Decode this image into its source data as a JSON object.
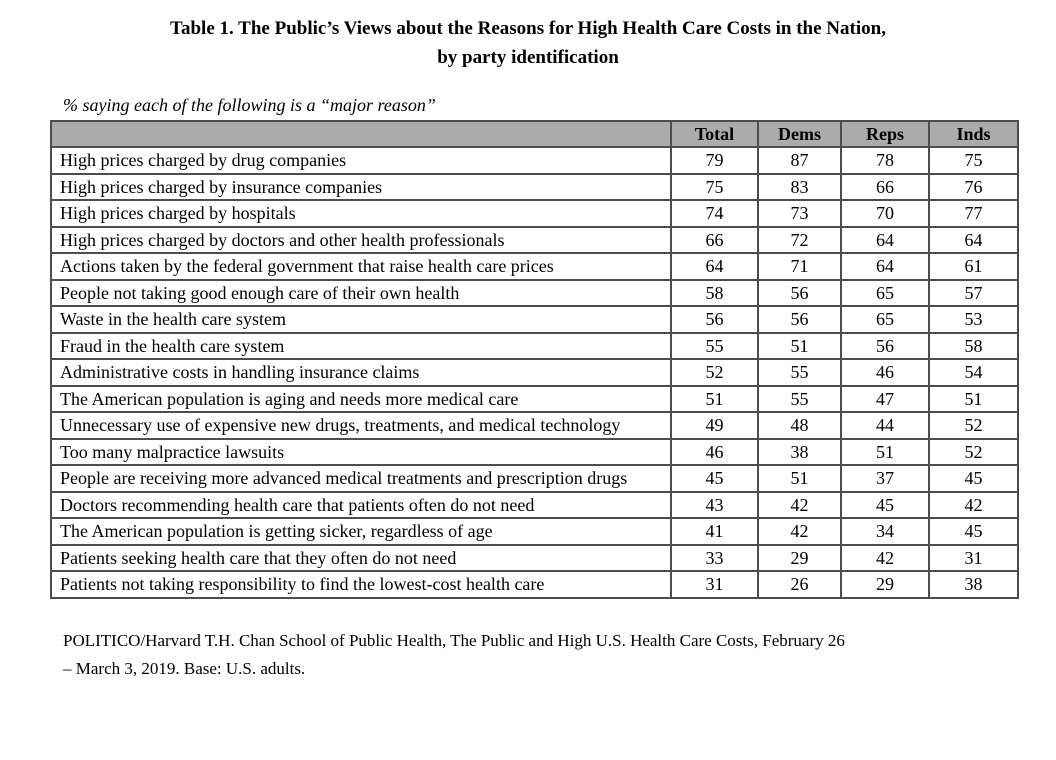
{
  "title": {
    "line1": "Table 1. The Public’s Views about the Reasons for High Health Care Costs in the Nation,",
    "line2": "by party identification"
  },
  "subtitle": "% saying each of the following is a “major reason”",
  "table": {
    "columns": [
      "Total",
      "Dems",
      "Reps",
      "Inds"
    ],
    "rows": [
      {
        "label": "High prices charged by drug companies",
        "values": [
          79,
          87,
          78,
          75
        ]
      },
      {
        "label": "High prices charged by insurance companies",
        "values": [
          75,
          83,
          66,
          76
        ]
      },
      {
        "label": "High prices charged by hospitals",
        "values": [
          74,
          73,
          70,
          77
        ]
      },
      {
        "label": "High prices charged by doctors and other health professionals",
        "values": [
          66,
          72,
          64,
          64
        ]
      },
      {
        "label": "Actions taken by the federal government that raise health care prices",
        "values": [
          64,
          71,
          64,
          61
        ]
      },
      {
        "label": "People not taking good enough care of their own health",
        "values": [
          58,
          56,
          65,
          57
        ]
      },
      {
        "label": "Waste in the health care system",
        "values": [
          56,
          56,
          65,
          53
        ]
      },
      {
        "label": "Fraud in the health care system",
        "values": [
          55,
          51,
          56,
          58
        ]
      },
      {
        "label": "Administrative costs in handling insurance claims",
        "values": [
          52,
          55,
          46,
          54
        ]
      },
      {
        "label": "The American population is aging and needs more medical care",
        "values": [
          51,
          55,
          47,
          51
        ]
      },
      {
        "label": "Unnecessary use of expensive new drugs, treatments, and medical technology",
        "values": [
          49,
          48,
          44,
          52
        ]
      },
      {
        "label": "Too many malpractice lawsuits",
        "values": [
          46,
          38,
          51,
          52
        ]
      },
      {
        "label": "People are receiving more advanced medical treatments and prescription drugs",
        "values": [
          45,
          51,
          37,
          45
        ]
      },
      {
        "label": "Doctors recommending health care that patients often do not need",
        "values": [
          43,
          42,
          45,
          42
        ]
      },
      {
        "label": "The American population is getting sicker, regardless of age",
        "values": [
          41,
          42,
          34,
          45
        ]
      },
      {
        "label": "Patients seeking health care that they often do not need",
        "values": [
          33,
          29,
          42,
          31
        ]
      },
      {
        "label": "Patients not taking responsibility to find the lowest-cost health care",
        "values": [
          31,
          26,
          29,
          38
        ]
      }
    ]
  },
  "footer": {
    "line1": "POLITICO/Harvard T.H. Chan School of Public Health, The Public and High U.S. Health Care Costs, February 26",
    "line2": "– March 3, 2019. Base: U.S. adults."
  },
  "colors": {
    "header_bg": "#ababab",
    "border": "#4d4d4d"
  }
}
